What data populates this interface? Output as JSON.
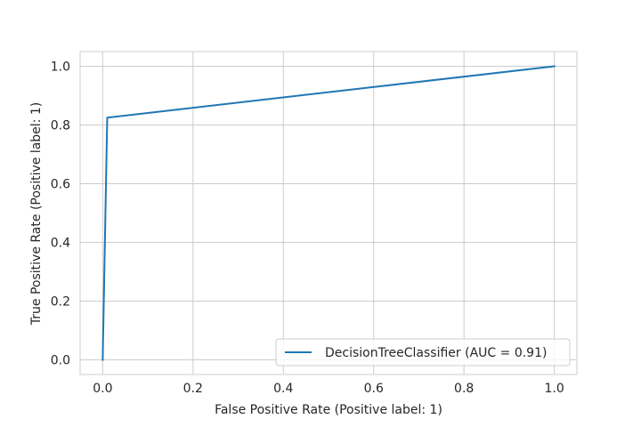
{
  "chart_data": {
    "type": "line",
    "xlabel": "False Positive Rate (Positive label: 1)",
    "ylabel": "True Positive Rate (Positive label: 1)",
    "xlim": [
      -0.05,
      1.05
    ],
    "ylim": [
      -0.05,
      1.05
    ],
    "xticks": [
      0.0,
      0.2,
      0.4,
      0.6,
      0.8,
      1.0
    ],
    "yticks": [
      0.0,
      0.2,
      0.4,
      0.6,
      0.8,
      1.0
    ],
    "xtick_labels": [
      "0.0",
      "0.2",
      "0.4",
      "0.6",
      "0.8",
      "1.0"
    ],
    "ytick_labels": [
      "0.0",
      "0.2",
      "0.4",
      "0.6",
      "0.8",
      "1.0"
    ],
    "grid": true,
    "legend_position": "bottom-right",
    "series": [
      {
        "name": "DecisionTreeClassifier (AUC = 0.91)",
        "color": "#1f77b4",
        "x": [
          0.0,
          0.01,
          1.0
        ],
        "y": [
          0.0,
          0.825,
          1.0
        ]
      }
    ]
  }
}
